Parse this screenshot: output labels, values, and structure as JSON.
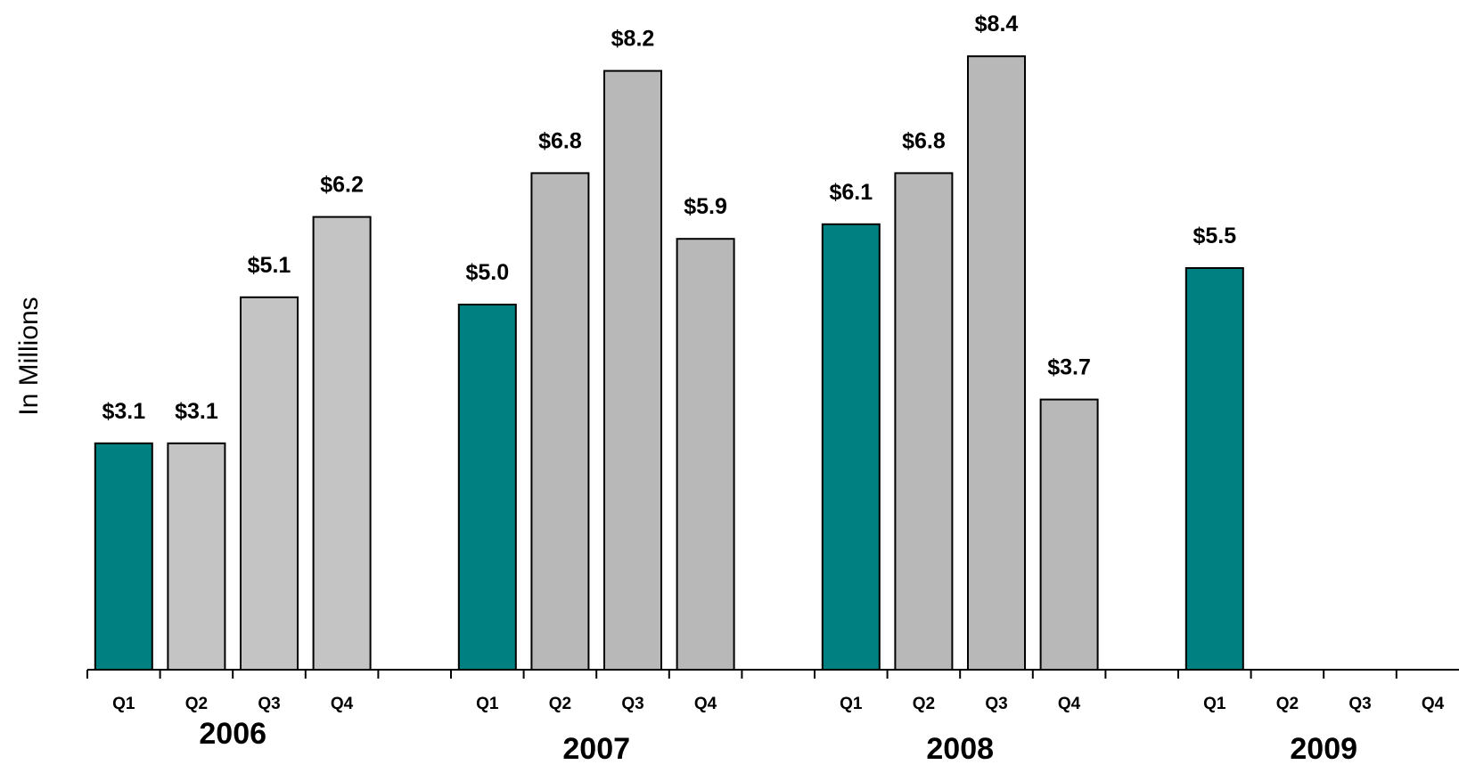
{
  "chart_data": {
    "type": "bar",
    "title": "",
    "xlabel": "",
    "ylabel": "In Millions",
    "ylim": [
      0,
      8.7
    ],
    "grid": false,
    "legend": "none",
    "groups": [
      {
        "year": "2006",
        "quarters": [
          "Q1",
          "Q2",
          "Q3",
          "Q4"
        ],
        "values": [
          3.1,
          3.1,
          5.1,
          6.2
        ],
        "labels": [
          "$3.1",
          "$3.1",
          "$5.1",
          "$6.2"
        ]
      },
      {
        "year": "2007",
        "quarters": [
          "Q1",
          "Q2",
          "Q3",
          "Q4"
        ],
        "values": [
          5.0,
          6.8,
          8.2,
          5.9
        ],
        "labels": [
          "$5.0",
          "$6.8",
          "$8.2",
          "$5.9"
        ]
      },
      {
        "year": "2008",
        "quarters": [
          "Q1",
          "Q2",
          "Q3",
          "Q4"
        ],
        "values": [
          6.1,
          6.8,
          8.4,
          3.7
        ],
        "labels": [
          "$6.1",
          "$6.8",
          "$8.4",
          "$3.7"
        ]
      },
      {
        "year": "2009",
        "quarters": [
          "Q1",
          "Q2",
          "Q3",
          "Q4"
        ],
        "values": [
          5.5,
          null,
          null,
          null
        ],
        "labels": [
          "$5.5",
          "",
          "",
          ""
        ]
      }
    ],
    "colors": {
      "q1": "#008080",
      "other": "#b8b8b8",
      "other_light": "#c4c4c4",
      "outline": "#000000"
    }
  }
}
